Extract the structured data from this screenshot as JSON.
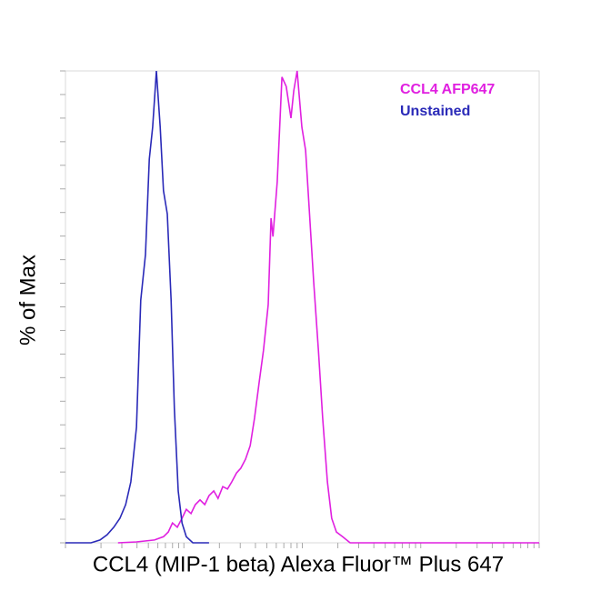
{
  "chart_data": {
    "type": "line",
    "xlabel": "CCL4 (MIP-1 beta) Alexa Fluor™ Plus 647",
    "ylabel": "% of Max",
    "xlim": [
      0,
      100
    ],
    "ylim": [
      0,
      100
    ],
    "xticks": [
      0,
      7.5,
      11.9,
      15.1,
      17.5,
      19.5,
      21.1,
      22.6,
      23.9,
      25,
      32.5,
      36.9,
      40.1,
      42.5,
      44.5,
      46.1,
      47.6,
      48.9,
      50,
      57.5,
      61.9,
      65.1,
      67.5,
      69.5,
      71.1,
      72.6,
      73.9,
      75,
      82.5,
      86.9,
      90.1,
      92.5,
      94.5,
      96.1,
      97.6,
      98.9,
      100
    ],
    "yticks": [
      0,
      5,
      10,
      15,
      20,
      25,
      30,
      35,
      40,
      45,
      50,
      55,
      60,
      65,
      70,
      75,
      80,
      85,
      90,
      95,
      100
    ],
    "legend": "top-right",
    "series": [
      {
        "name": "CCL4 AFP647",
        "color": "#e020e0",
        "x": [
          11.1,
          15.0,
          18.8,
          20.7,
          21.7,
          22.6,
          23.6,
          24.6,
          25.5,
          26.5,
          27.4,
          28.4,
          29.4,
          30.3,
          31.3,
          32.2,
          33.2,
          34.2,
          35.1,
          36.1,
          37.0,
          38.0,
          39.0,
          39.9,
          40.9,
          41.8,
          42.8,
          43.4,
          43.8,
          44.7,
          45.7,
          46.6,
          47.6,
          48.2,
          48.9,
          49.9,
          50.7,
          51.4,
          52.4,
          53.4,
          54.3,
          55.3,
          56.2,
          57.2,
          58.5,
          60.1,
          63.0,
          100
        ],
        "values": [
          0,
          0.2,
          0.6,
          1.3,
          2.3,
          4.2,
          3.3,
          5.2,
          7.1,
          6.2,
          8.1,
          9.1,
          8.1,
          10.0,
          11.0,
          9.4,
          11.9,
          11.4,
          12.9,
          14.8,
          15.8,
          17.7,
          20.6,
          26.4,
          34.1,
          40.8,
          50.5,
          68.8,
          64.9,
          76.5,
          98.7,
          96.7,
          90.0,
          95.8,
          100,
          88.1,
          83.2,
          71.7,
          55.3,
          40.8,
          26.4,
          12.9,
          5.2,
          2.3,
          1.3,
          0,
          0,
          0
        ]
      },
      {
        "name": "Unstained",
        "color": "#2a2ab8",
        "x": [
          0,
          5.4,
          7.3,
          8.8,
          10.2,
          11.5,
          12.7,
          13.8,
          15.0,
          15.9,
          16.9,
          17.7,
          18.4,
          19.2,
          20.0,
          20.7,
          21.5,
          22.3,
          23.0,
          23.8,
          24.6,
          25.5,
          26.9,
          30.3
        ],
        "values": [
          0,
          0,
          0.6,
          1.7,
          3.3,
          5.2,
          8.1,
          12.9,
          24.5,
          51.4,
          61.1,
          81.3,
          88.1,
          100,
          88.1,
          74.6,
          69.7,
          51.4,
          28.3,
          11.0,
          4.2,
          1.3,
          0,
          0
        ]
      }
    ]
  }
}
